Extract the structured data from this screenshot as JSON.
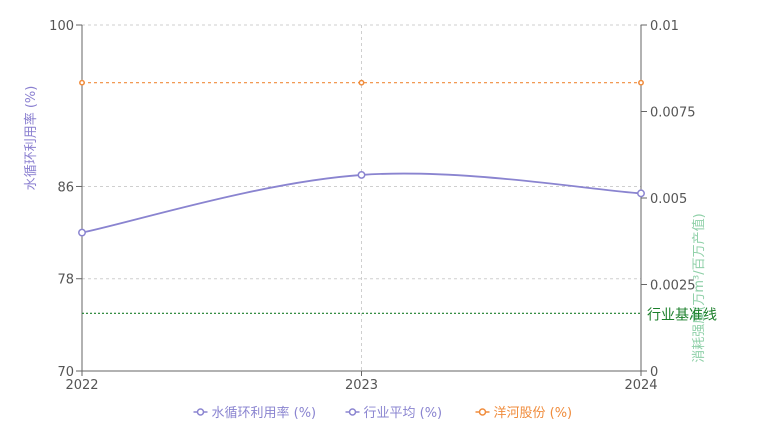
{
  "chart_data": {
    "type": "line",
    "x": [
      "2022",
      "2023",
      "2024"
    ],
    "left_axis": {
      "label": "水循环利用率 (%)",
      "ylim": [
        70,
        100
      ],
      "ticks": [
        70,
        78,
        86,
        100
      ],
      "color": "#8a7fd0"
    },
    "right_axis": {
      "label": "消耗强度(万m³/百万产值)",
      "ylim": [
        0,
        0.01
      ],
      "ticks": [
        "0",
        "0.0025",
        "0.005",
        "0.0075",
        "0.01"
      ],
      "color": "#8fd0a8"
    },
    "series": [
      {
        "name": "水循环利用率 (%)",
        "color": "#8a84d0",
        "values": [
          82.0,
          87.0,
          85.4
        ],
        "axis": "left",
        "style": "solid"
      },
      {
        "name": "行业平均 (%)",
        "color": "#8a84d0",
        "values": [
          null,
          null,
          null
        ],
        "axis": "left",
        "style": "solid"
      },
      {
        "name": "洋河股份 (%)",
        "color": "#f08c3c",
        "values": [
          95.0,
          95.0,
          95.0
        ],
        "axis": "left",
        "style": "dashed"
      }
    ],
    "reference_line": {
      "label": "行业基准线",
      "value": 75,
      "axis": "left",
      "color": "#1a7f2a"
    },
    "grid": true,
    "legend_position": "bottom"
  }
}
